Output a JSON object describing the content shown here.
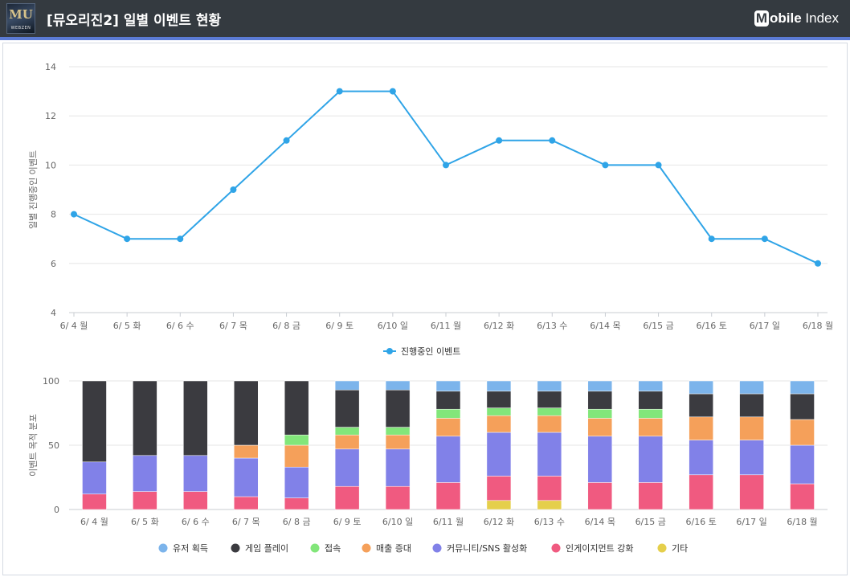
{
  "header": {
    "title": "[뮤오리진2] 일별 이벤트 현황",
    "game_logo": {
      "mark": "MU",
      "sub": "WEBZEN"
    },
    "brand_m": "M",
    "brand_rest_bold": "obile",
    "brand_rest": "Index"
  },
  "colors": {
    "header_bg": "#343a40",
    "accent_bar": "#5b7bd5",
    "line": "#2fa4e7"
  },
  "chart_data": [
    {
      "type": "line",
      "categories": [
        "6/ 4 월",
        "6/ 5 화",
        "6/ 6 수",
        "6/ 7 목",
        "6/ 8 금",
        "6/ 9 토",
        "6/10 일",
        "6/11 월",
        "6/12 화",
        "6/13 수",
        "6/14 목",
        "6/15 금",
        "6/16 토",
        "6/17 일",
        "6/18 월"
      ],
      "series": [
        {
          "name": "진행중인 이벤트",
          "color": "#2fa4e7",
          "values": [
            8,
            7,
            7,
            9,
            11,
            13,
            13,
            10,
            11,
            11,
            10,
            10,
            7,
            7,
            6
          ]
        }
      ],
      "ylabel": "일별 진행중인 이벤트",
      "ylim": [
        4,
        14
      ],
      "yticks": [
        4,
        6,
        8,
        10,
        12,
        14
      ],
      "grid": true,
      "legend": "bottom-center"
    },
    {
      "type": "bar",
      "stacked": true,
      "categories": [
        "6/ 4 월",
        "6/ 5 화",
        "6/ 6 수",
        "6/ 7 목",
        "6/ 8 금",
        "6/ 9 토",
        "6/10 일",
        "6/11 월",
        "6/12 화",
        "6/13 수",
        "6/14 목",
        "6/15 금",
        "6/16 토",
        "6/17 일",
        "6/18 월"
      ],
      "series": [
        {
          "name": "기타",
          "color": "#e5cf4b",
          "values": [
            0,
            0,
            0,
            0,
            0,
            0,
            0,
            0,
            7,
            7,
            0,
            0,
            0,
            0,
            0
          ]
        },
        {
          "name": "인게이지먼트 강화",
          "color": "#f05a80",
          "values": [
            12,
            14,
            14,
            10,
            9,
            18,
            18,
            21,
            19,
            19,
            21,
            21,
            27,
            27,
            20
          ]
        },
        {
          "name": "커뮤니티/SNS 활성화",
          "color": "#8181e8",
          "values": [
            25,
            28,
            28,
            30,
            24,
            29,
            29,
            36,
            34,
            34,
            36,
            36,
            27,
            27,
            30
          ]
        },
        {
          "name": "매출 증대",
          "color": "#f5a05a",
          "values": [
            0,
            0,
            0,
            10,
            17,
            11,
            11,
            14,
            13,
            13,
            14,
            14,
            18,
            18,
            20
          ]
        },
        {
          "name": "접속",
          "color": "#82e67a",
          "values": [
            0,
            0,
            0,
            0,
            8,
            6,
            6,
            7,
            6,
            6,
            7,
            7,
            0,
            0,
            0
          ]
        },
        {
          "name": "게임 플레이",
          "color": "#3b3b40",
          "values": [
            63,
            58,
            58,
            50,
            42,
            29,
            29,
            14,
            13,
            13,
            14,
            14,
            18,
            18,
            20
          ]
        },
        {
          "name": "유저 획득",
          "color": "#7cb4eb",
          "values": [
            0,
            0,
            0,
            0,
            0,
            7,
            7,
            8,
            8,
            8,
            8,
            8,
            10,
            10,
            10
          ]
        }
      ],
      "legend_order": [
        "유저 획득",
        "게임 플레이",
        "접속",
        "매출 증대",
        "커뮤니티/SNS 활성화",
        "인게이지먼트 강화",
        "기타"
      ],
      "ylabel": "이벤트 목적 분포",
      "ylim": [
        0,
        100
      ],
      "yticks": [
        0,
        50,
        100
      ],
      "grid": true,
      "legend": "bottom-center"
    }
  ]
}
